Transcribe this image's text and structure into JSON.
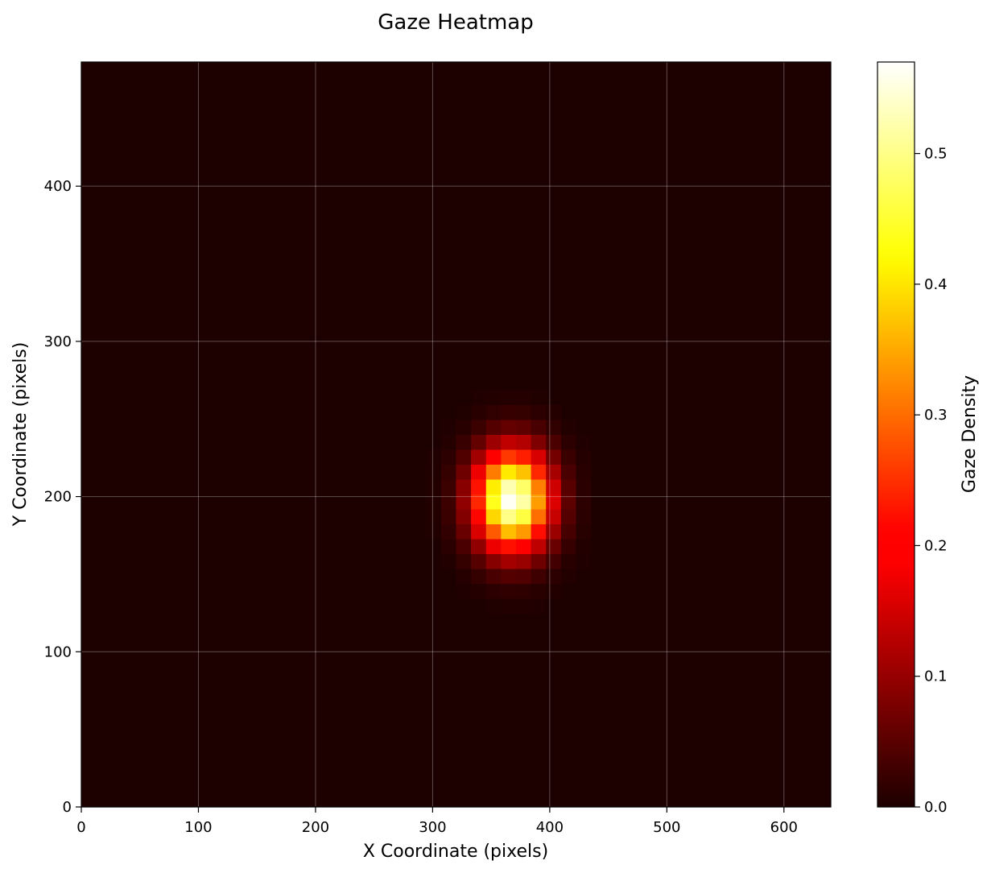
{
  "chart_data": {
    "type": "heatmap",
    "title": "Gaze Heatmap",
    "xlabel": "X Coordinate (pixels)",
    "ylabel": "Y Coordinate (pixels)",
    "xlim": [
      0,
      640
    ],
    "ylim": [
      0,
      480
    ],
    "x_ticks": [
      0,
      100,
      200,
      300,
      400,
      500,
      600
    ],
    "y_ticks": [
      0,
      100,
      200,
      300,
      400
    ],
    "grid": true,
    "colormap": "hot",
    "colorbar": {
      "label": "Gaze Density",
      "range": [
        0,
        0.57
      ],
      "ticks": [
        0.0,
        0.1,
        0.2,
        0.3,
        0.4,
        0.5
      ],
      "tick_labels": [
        "0.0",
        "0.1",
        "0.2",
        "0.3",
        "0.4",
        "0.5"
      ]
    },
    "bins": {
      "nx": 50,
      "ny": 50
    },
    "hotspot": {
      "peak_x": 368,
      "peak_y": 198,
      "peak_density": 0.57,
      "spread_x": 22,
      "spread_y": 22
    }
  }
}
